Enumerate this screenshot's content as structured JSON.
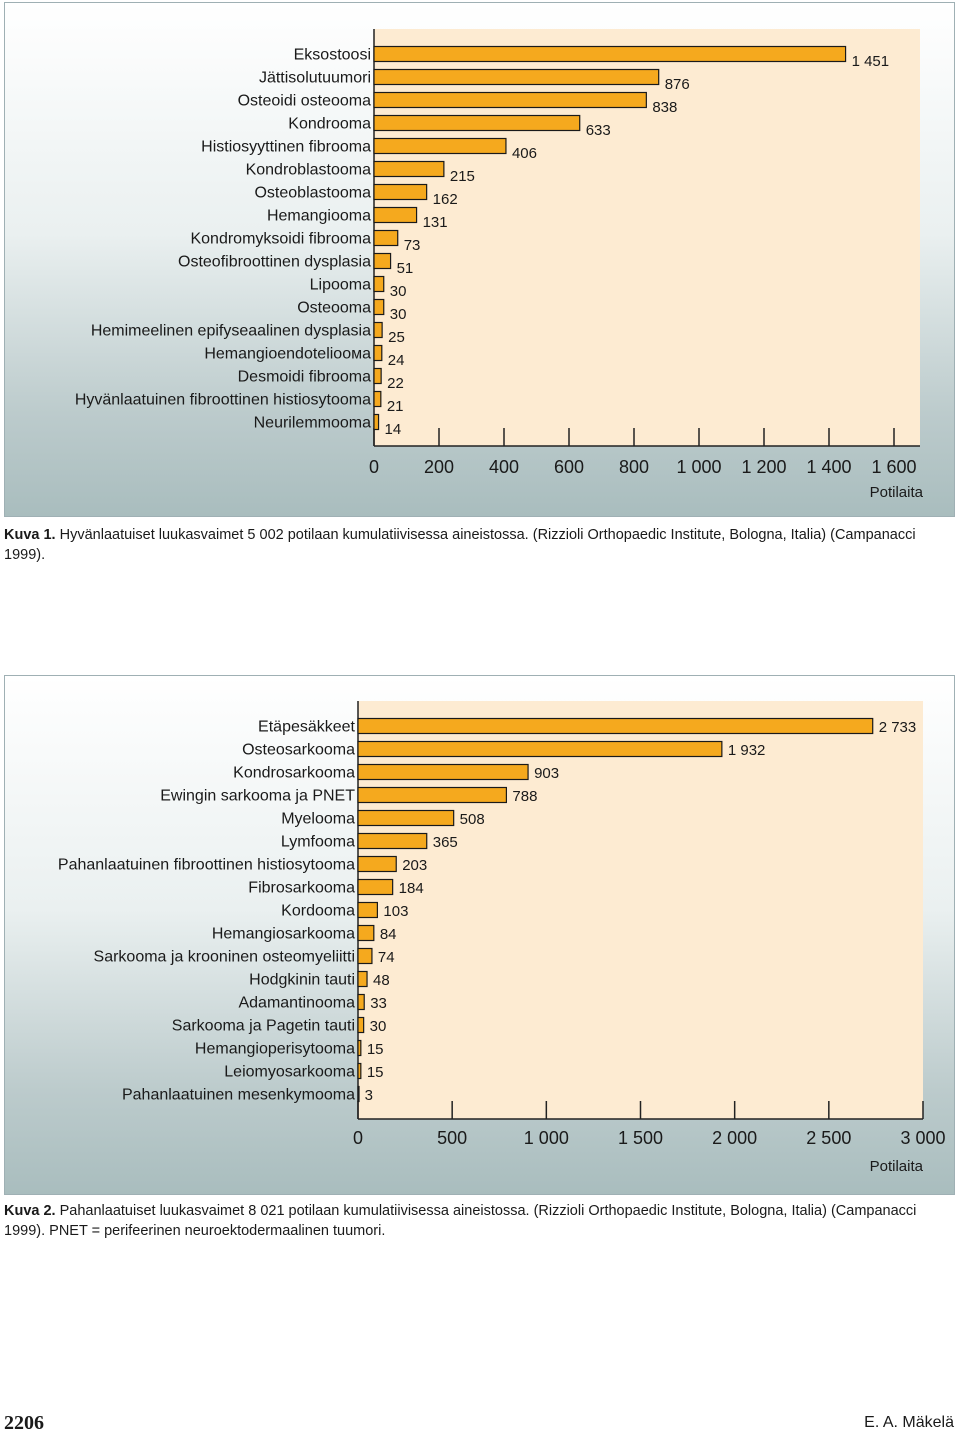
{
  "chart_data": [
    {
      "type": "bar",
      "orientation": "horizontal",
      "categories": [
        "Eksostoosi",
        "Jättisolutuumori",
        "Osteoidi osteooma",
        "Kondrooma",
        "Histiosyyttinen fibrooma",
        "Kondroblastooma",
        "Osteoblastooma",
        "Hemangiooma",
        "Kondromyksoidi fibrooma",
        "Osteofibroottinen dysplasia",
        "Lipooma",
        "Osteooma",
        "Hemimeelinen epifyseaalinen dysplasia",
        "Hemangioendotelioома",
        "Desmoidi fibrooma",
        "Hyvänlaatuinen fibroottinen histiosytooma",
        "Neurilemmooma"
      ],
      "values": [
        1451,
        876,
        838,
        633,
        406,
        215,
        162,
        131,
        73,
        51,
        30,
        30,
        25,
        24,
        22,
        21,
        14
      ],
      "value_labels": [
        "1 451",
        "876",
        "838",
        "633",
        "406",
        "215",
        "162",
        "131",
        "73",
        "51",
        "30",
        "30",
        "25",
        "24",
        "22",
        "21",
        "14"
      ],
      "xticks": [
        "0",
        "200",
        "400",
        "600",
        "800",
        "1 000",
        "1 200",
        "1 400",
        "1 600"
      ],
      "xtick_values": [
        0,
        200,
        400,
        600,
        800,
        1000,
        1200,
        1400,
        1600
      ],
      "xlim": [
        0,
        1680
      ],
      "xlabel": "Potilaita",
      "bar_color": "#f5a91e",
      "plot_bg": "#fdebd2"
    },
    {
      "type": "bar",
      "orientation": "horizontal",
      "categories": [
        "Etäpesäkkeet",
        "Osteosarkooma",
        "Kondrosarkooma",
        "Ewingin sarkooma ja PNET",
        "Myelooma",
        "Lymfooma",
        "Pahanlaatuinen fibroottinen histiosytooma",
        "Fibrosarkooma",
        "Kordooma",
        "Hemangiosarkooma",
        "Sarkooma ja krooninen osteomyeliitti",
        "Hodgkinin tauti",
        "Adamantinooma",
        "Sarkooma ja Pagetin tauti",
        "Hemangioperisytooma",
        "Leiomyosarkooma",
        "Pahanlaatuinen mesenkymooma"
      ],
      "values": [
        2733,
        1932,
        903,
        788,
        508,
        365,
        203,
        184,
        103,
        84,
        74,
        48,
        33,
        30,
        15,
        15,
        3
      ],
      "value_labels": [
        "2 733",
        "1 932",
        "903",
        "788",
        "508",
        "365",
        "203",
        "184",
        "103",
        "84",
        "74",
        "48",
        "33",
        "30",
        "15",
        "15",
        "3"
      ],
      "xticks": [
        "0",
        "500",
        "1 000",
        "1 500",
        "2 000",
        "2 500",
        "3 000"
      ],
      "xtick_values": [
        0,
        500,
        1000,
        1500,
        2000,
        2500,
        3000
      ],
      "xlim": [
        0,
        3000
      ],
      "xlabel": "Potilaita",
      "bar_color": "#f5a91e",
      "plot_bg": "#fdebd2"
    }
  ],
  "captions": [
    {
      "label": "Kuva 1.",
      "text": " Hyvänlaatuiset luukasvaimet 5 002 potilaan kumulatiivisessa aineistossa. (Rizzioli Orthopaedic Institute, Bologna, Italia) (Campanacci 1999)."
    },
    {
      "label": "Kuva 2.",
      "text": " Pahanlaatuiset luukasvaimet 8 021 potilaan kumulatiivisessa aineistossa. (Rizzioli Orthopaedic Institute, Bologna, Italia) (Campanacci 1999). PNET = perifeerinen neuroektodermaalinen tuumori."
    }
  ],
  "footer": {
    "page_number": "2206",
    "author": "E. A. Mäkelä"
  }
}
